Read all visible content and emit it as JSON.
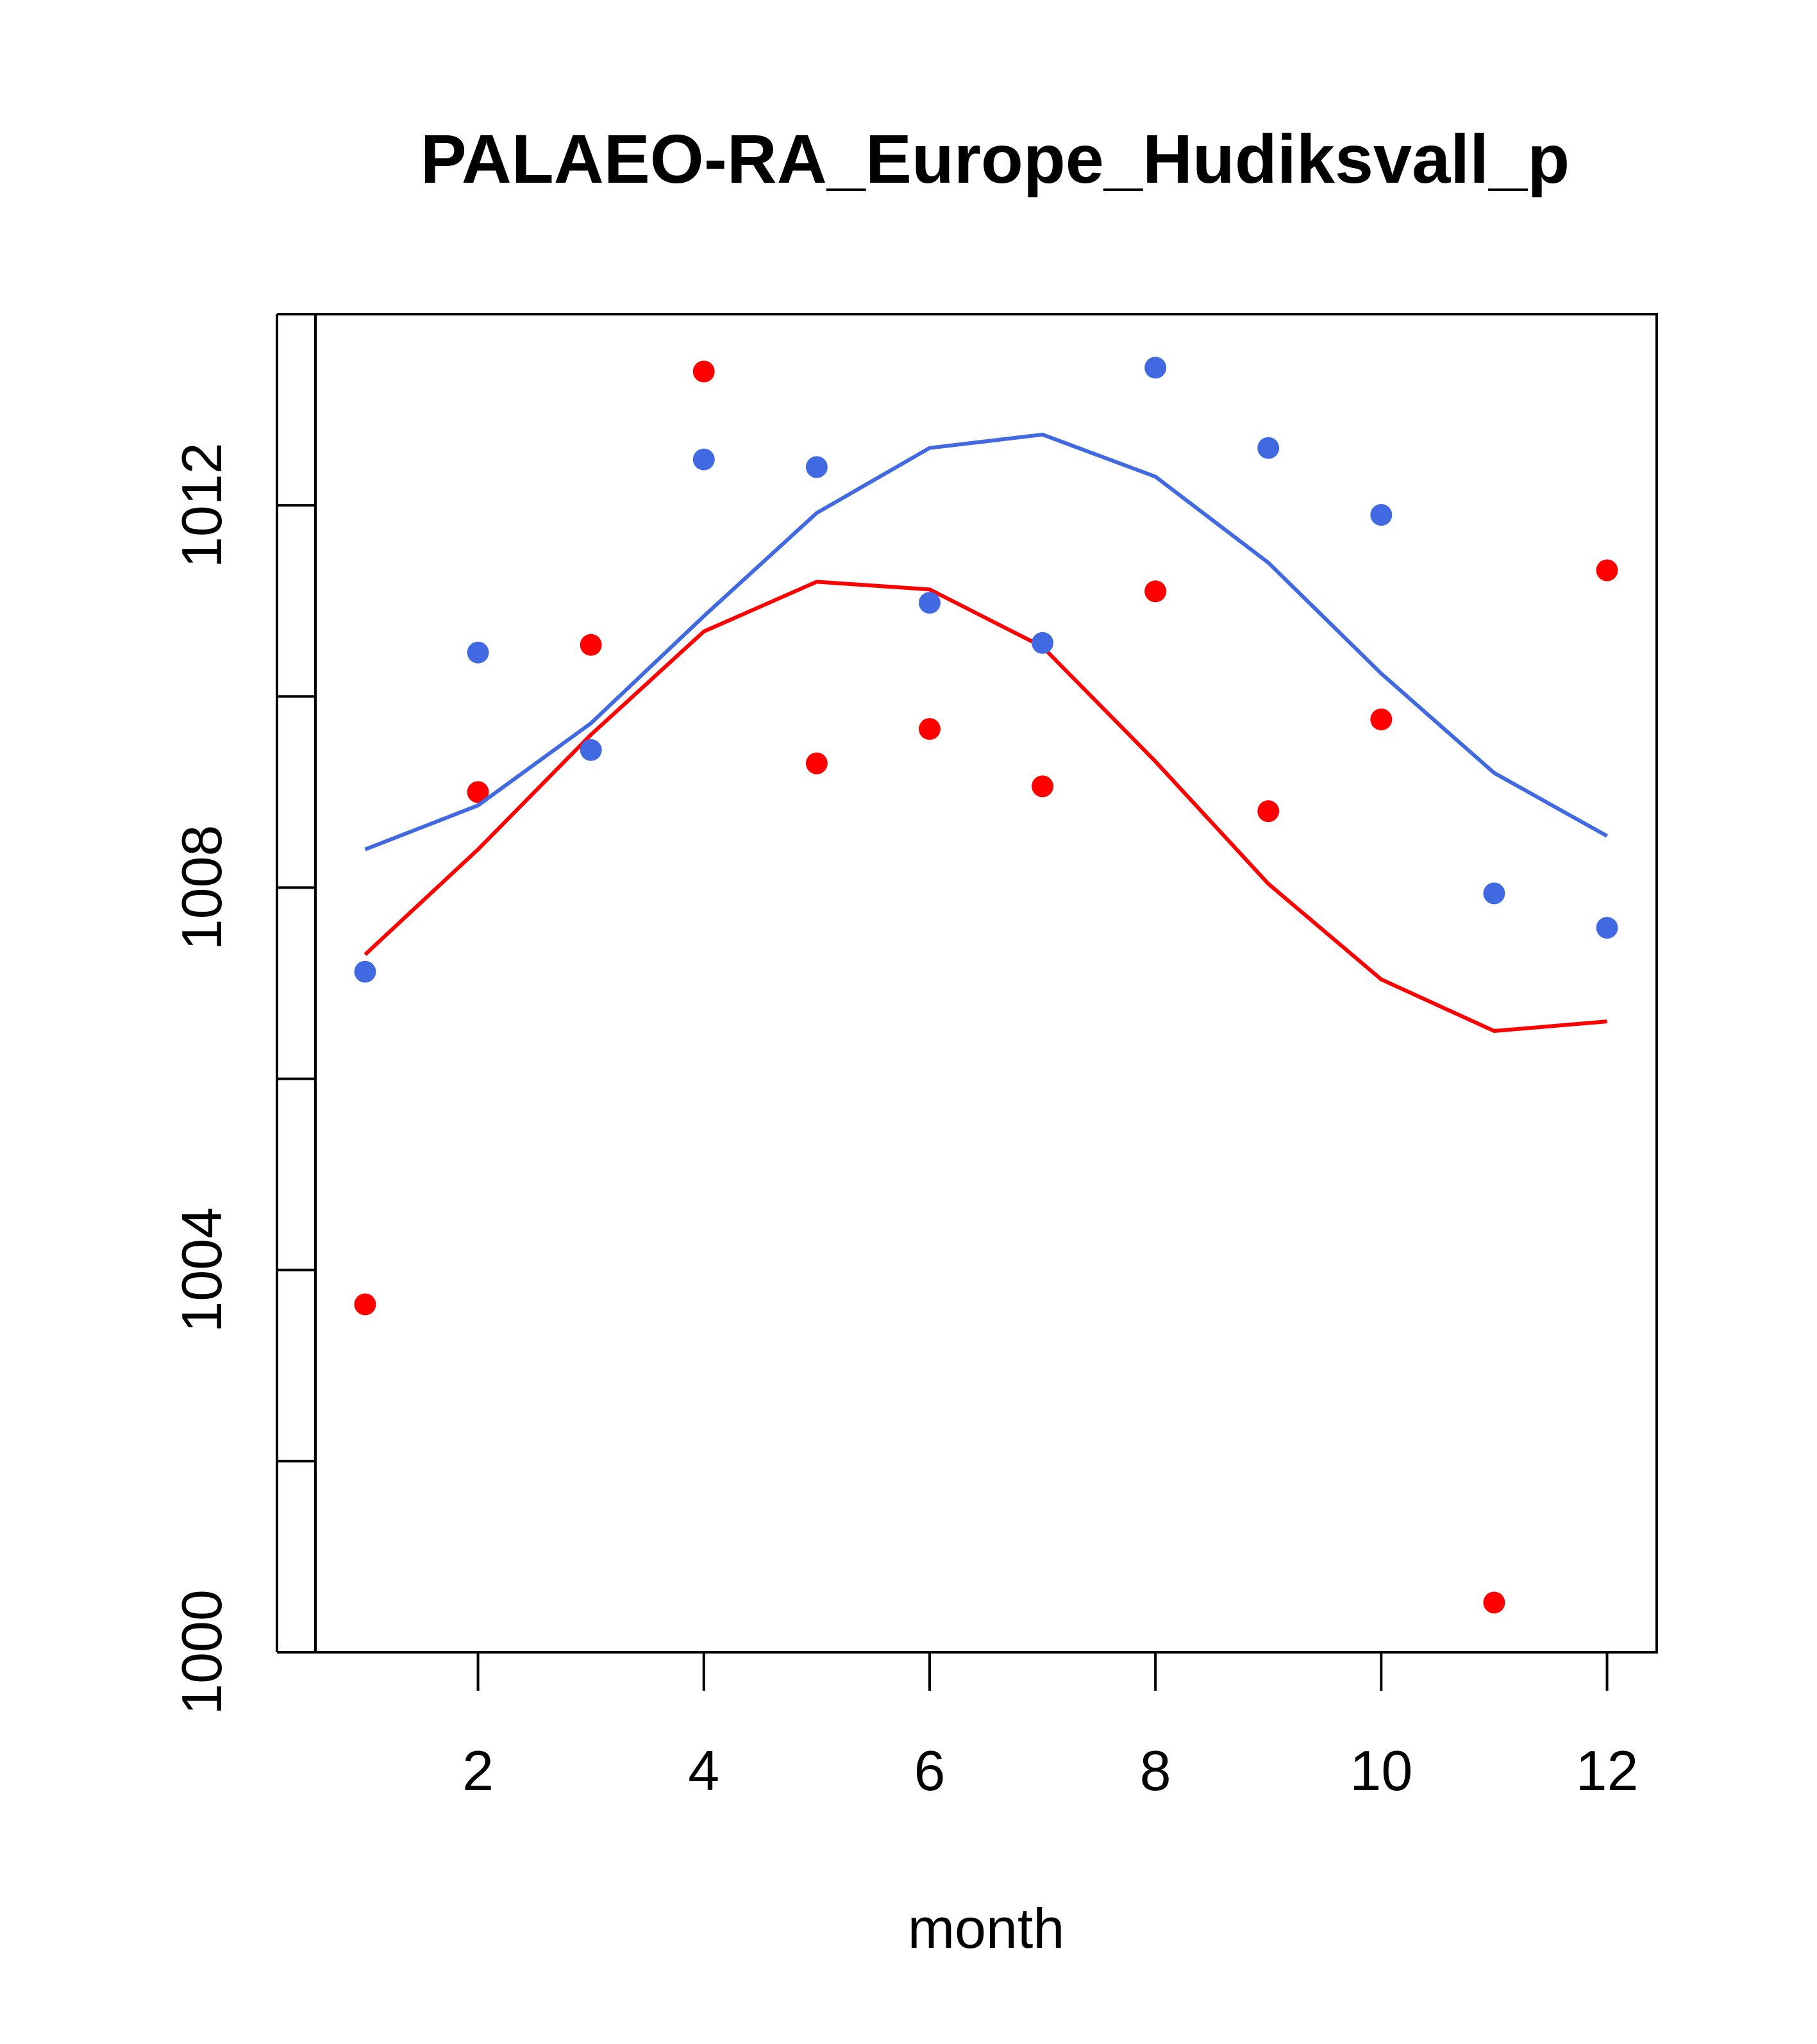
{
  "chart_data": {
    "type": "line",
    "title": "PALAEO-RA_Europe_Hudiksvall_p",
    "xlabel": "month",
    "ylabel": "",
    "xlim": [
      0.56,
      12.44
    ],
    "ylim": [
      1000,
      1014
    ],
    "x_ticks": [
      2,
      4,
      6,
      8,
      10,
      12
    ],
    "y_ticks": [
      1000,
      1002,
      1004,
      1006,
      1008,
      1010,
      1012,
      1014
    ],
    "y_tick_labels": [
      "1000",
      "",
      "1004",
      "",
      "1008",
      "",
      "1012",
      ""
    ],
    "x": [
      1,
      2,
      3,
      4,
      5,
      6,
      7,
      8,
      9,
      10,
      11,
      12
    ],
    "series": [
      {
        "color": "#ff0000",
        "line": [
          1007.3,
          1008.4,
          1009.6,
          1010.68,
          1011.2,
          1011.12,
          1010.52,
          1009.32,
          1008.04,
          1007.04,
          1006.5,
          1006.6
        ],
        "points": [
          1003.64,
          1009.0,
          1010.54,
          1013.4,
          1009.3,
          1009.66,
          1009.06,
          1011.1,
          1008.8,
          1009.76,
          1000.52,
          1011.32
        ]
      },
      {
        "color": "#4169e1",
        "line": [
          1008.4,
          1008.86,
          1009.72,
          1010.84,
          1011.92,
          1012.6,
          1012.74,
          1012.3,
          1011.4,
          1010.24,
          1009.2,
          1008.54
        ],
        "points": [
          1007.12,
          1010.46,
          1009.44,
          1012.48,
          1012.4,
          1010.98,
          1010.56,
          1013.44,
          1012.6,
          1011.9,
          1007.94,
          1007.58
        ]
      }
    ]
  }
}
